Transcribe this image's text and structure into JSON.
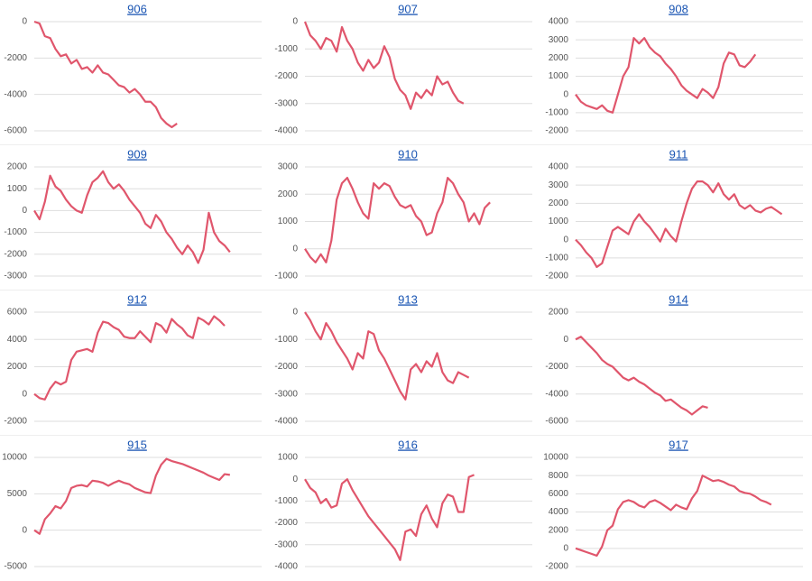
{
  "chart_data": [
    {
      "type": "line",
      "title": "906",
      "ylim": [
        -6000,
        0
      ],
      "yticks": [
        0,
        -2000,
        -4000,
        -6000
      ],
      "grid": true,
      "series": [
        {
          "color": "#e0566c",
          "values": [
            0,
            -100,
            -800,
            -900,
            -1500,
            -1900,
            -1800,
            -2300,
            -2100,
            -2600,
            -2500,
            -2800,
            -2400,
            -2800,
            -2900,
            -3200,
            -3500,
            -3600,
            -3900,
            -3700,
            -4000,
            -4400,
            -4400,
            -4700,
            -5300,
            -5600,
            -5800,
            -5600
          ]
        }
      ]
    },
    {
      "type": "line",
      "title": "907",
      "ylim": [
        -4000,
        0
      ],
      "yticks": [
        0,
        -1000,
        -2000,
        -3000,
        -4000
      ],
      "grid": true,
      "series": [
        {
          "color": "#e0566c",
          "values": [
            0,
            -500,
            -700,
            -1000,
            -600,
            -700,
            -1100,
            -200,
            -700,
            -1000,
            -1500,
            -1800,
            -1400,
            -1700,
            -1500,
            -900,
            -1300,
            -2100,
            -2500,
            -2700,
            -3200,
            -2600,
            -2800,
            -2500,
            -2700,
            -2000,
            -2300,
            -2200,
            -2600,
            -2900,
            -3000
          ]
        }
      ]
    },
    {
      "type": "line",
      "title": "908",
      "ylim": [
        -2000,
        4000
      ],
      "yticks": [
        4000,
        3000,
        2000,
        1000,
        0,
        -1000,
        -2000
      ],
      "grid": true,
      "series": [
        {
          "color": "#e0566c",
          "values": [
            0,
            -400,
            -600,
            -700,
            -800,
            -600,
            -900,
            -1000,
            0,
            1000,
            1500,
            3100,
            2800,
            3100,
            2600,
            2300,
            2100,
            1700,
            1400,
            1000,
            500,
            200,
            0,
            -200,
            300,
            100,
            -200,
            400,
            1700,
            2300,
            2200,
            1600,
            1500,
            1800,
            2200
          ]
        }
      ]
    },
    {
      "type": "line",
      "title": "909",
      "ylim": [
        -3000,
        2000
      ],
      "yticks": [
        2000,
        1000,
        0,
        -1000,
        -2000,
        -3000
      ],
      "grid": true,
      "series": [
        {
          "color": "#e0566c",
          "values": [
            0,
            -400,
            400,
            1600,
            1100,
            900,
            500,
            200,
            0,
            -100,
            700,
            1300,
            1500,
            1800,
            1300,
            1000,
            1200,
            900,
            500,
            200,
            -100,
            -600,
            -800,
            -200,
            -500,
            -1000,
            -1300,
            -1700,
            -2000,
            -1600,
            -1900,
            -2400,
            -1800,
            -100,
            -1000,
            -1400,
            -1600,
            -1900
          ]
        }
      ]
    },
    {
      "type": "line",
      "title": "910",
      "ylim": [
        -1000,
        3000
      ],
      "yticks": [
        3000,
        2000,
        1000,
        0,
        -1000
      ],
      "grid": true,
      "series": [
        {
          "color": "#e0566c",
          "values": [
            0,
            -300,
            -500,
            -200,
            -500,
            300,
            1800,
            2400,
            2600,
            2200,
            1700,
            1300,
            1100,
            2400,
            2200,
            2400,
            2300,
            1900,
            1600,
            1500,
            1600,
            1200,
            1000,
            500,
            600,
            1300,
            1700,
            2600,
            2400,
            2000,
            1700,
            1000,
            1300,
            900,
            1500,
            1700
          ]
        }
      ]
    },
    {
      "type": "line",
      "title": "911",
      "ylim": [
        -2000,
        4000
      ],
      "yticks": [
        4000,
        3000,
        2000,
        1000,
        0,
        -1000,
        -2000
      ],
      "grid": true,
      "series": [
        {
          "color": "#e0566c",
          "values": [
            0,
            -300,
            -700,
            -1000,
            -1500,
            -1300,
            -400,
            500,
            700,
            500,
            300,
            1000,
            1400,
            1000,
            700,
            300,
            -100,
            600,
            200,
            -100,
            1000,
            2000,
            2800,
            3200,
            3200,
            3000,
            2600,
            3100,
            2500,
            2200,
            2500,
            1900,
            1700,
            1900,
            1600,
            1500,
            1700,
            1800,
            1600,
            1400
          ]
        }
      ]
    },
    {
      "type": "line",
      "title": "912",
      "ylim": [
        -2000,
        6000
      ],
      "yticks": [
        6000,
        4000,
        2000,
        0,
        -2000
      ],
      "grid": true,
      "series": [
        {
          "color": "#e0566c",
          "values": [
            0,
            -300,
            -400,
            400,
            900,
            700,
            900,
            2500,
            3100,
            3200,
            3300,
            3100,
            4500,
            5300,
            5200,
            4900,
            4700,
            4200,
            4100,
            4100,
            4600,
            4200,
            3800,
            5200,
            5000,
            4500,
            5500,
            5100,
            4800,
            4300,
            4100,
            5600,
            5400,
            5100,
            5700,
            5400,
            5000
          ]
        }
      ]
    },
    {
      "type": "line",
      "title": "913",
      "ylim": [
        -4000,
        0
      ],
      "yticks": [
        0,
        -1000,
        -2000,
        -3000,
        -4000
      ],
      "grid": true,
      "series": [
        {
          "color": "#e0566c",
          "values": [
            0,
            -300,
            -700,
            -1000,
            -400,
            -700,
            -1100,
            -1400,
            -1700,
            -2100,
            -1500,
            -1700,
            -700,
            -800,
            -1400,
            -1700,
            -2100,
            -2500,
            -2900,
            -3200,
            -2100,
            -1900,
            -2200,
            -1800,
            -2000,
            -1500,
            -2200,
            -2500,
            -2600,
            -2200,
            -2300,
            -2400
          ]
        }
      ]
    },
    {
      "type": "line",
      "title": "914",
      "ylim": [
        -6000,
        2000
      ],
      "yticks": [
        2000,
        0,
        -2000,
        -4000,
        -6000
      ],
      "grid": true,
      "series": [
        {
          "color": "#e0566c",
          "values": [
            0,
            200,
            -200,
            -600,
            -1000,
            -1500,
            -1800,
            -2000,
            -2400,
            -2800,
            -3000,
            -2800,
            -3100,
            -3300,
            -3600,
            -3900,
            -4100,
            -4500,
            -4400,
            -4700,
            -5000,
            -5200,
            -5500,
            -5200,
            -4900,
            -5000
          ]
        }
      ]
    },
    {
      "type": "line",
      "title": "915",
      "ylim": [
        -5000,
        10000
      ],
      "yticks": [
        10000,
        5000,
        0,
        -5000
      ],
      "grid": true,
      "series": [
        {
          "color": "#e0566c",
          "values": [
            0,
            -500,
            1500,
            2300,
            3300,
            3000,
            4000,
            5800,
            6100,
            6200,
            6000,
            6800,
            6700,
            6500,
            6100,
            6500,
            6800,
            6500,
            6300,
            5800,
            5500,
            5200,
            5100,
            7500,
            9000,
            9800,
            9500,
            9300,
            9100,
            8800,
            8500,
            8200,
            7900,
            7500,
            7200,
            6900,
            7700,
            7600
          ]
        }
      ]
    },
    {
      "type": "line",
      "title": "916",
      "ylim": [
        -4000,
        1000
      ],
      "yticks": [
        1000,
        0,
        -1000,
        -2000,
        -3000,
        -4000
      ],
      "grid": true,
      "series": [
        {
          "color": "#e0566c",
          "values": [
            0,
            -400,
            -600,
            -1100,
            -900,
            -1300,
            -1200,
            -200,
            0,
            -500,
            -900,
            -1300,
            -1700,
            -2000,
            -2300,
            -2600,
            -2900,
            -3200,
            -3700,
            -2400,
            -2300,
            -2600,
            -1600,
            -1200,
            -1800,
            -2200,
            -1100,
            -700,
            -800,
            -1500,
            -1500,
            100,
            200
          ]
        }
      ]
    },
    {
      "type": "line",
      "title": "917",
      "ylim": [
        -2000,
        10000
      ],
      "yticks": [
        10000,
        8000,
        6000,
        4000,
        2000,
        0,
        -2000
      ],
      "grid": true,
      "series": [
        {
          "color": "#e0566c",
          "values": [
            0,
            -200,
            -400,
            -600,
            -800,
            200,
            2000,
            2500,
            4300,
            5100,
            5300,
            5100,
            4700,
            4500,
            5100,
            5300,
            5000,
            4600,
            4200,
            4800,
            4500,
            4300,
            5500,
            6300,
            8000,
            7700,
            7400,
            7500,
            7300,
            7000,
            6800,
            6300,
            6100,
            6000,
            5700,
            5300,
            5100,
            4800
          ]
        }
      ]
    }
  ]
}
